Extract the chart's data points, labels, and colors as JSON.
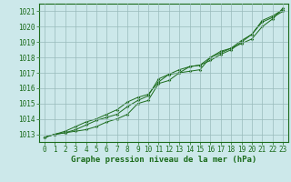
{
  "xlabel": "Graphe pression niveau de la mer (hPa)",
  "bg_color": "#cce8ea",
  "plot_bg_color": "#cce8ea",
  "line_color": "#1a6b1a",
  "grid_color": "#99bbbb",
  "text_color": "#1a6b1a",
  "xlim": [
    -0.5,
    23.5
  ],
  "ylim": [
    1012.5,
    1021.5
  ],
  "yticks": [
    1013,
    1014,
    1015,
    1016,
    1017,
    1018,
    1019,
    1020,
    1021
  ],
  "xticks": [
    0,
    1,
    2,
    3,
    4,
    5,
    6,
    7,
    8,
    9,
    10,
    11,
    12,
    13,
    14,
    15,
    16,
    17,
    18,
    19,
    20,
    21,
    22,
    23
  ],
  "line1": [
    1012.8,
    1013.0,
    1013.1,
    1013.2,
    1013.3,
    1013.5,
    1013.8,
    1014.0,
    1014.3,
    1015.0,
    1015.2,
    1016.3,
    1016.5,
    1017.0,
    1017.4,
    1017.5,
    1017.8,
    1018.2,
    1018.5,
    1019.0,
    1019.5,
    1020.3,
    1020.6,
    1021.0
  ],
  "line2": [
    1012.8,
    1013.0,
    1013.1,
    1013.3,
    1013.6,
    1013.9,
    1014.1,
    1014.3,
    1014.8,
    1015.2,
    1015.5,
    1016.6,
    1016.9,
    1017.2,
    1017.4,
    1017.5,
    1018.0,
    1018.3,
    1018.6,
    1019.1,
    1019.5,
    1020.4,
    1020.7,
    1021.1
  ],
  "line3": [
    1012.8,
    1013.0,
    1013.2,
    1013.5,
    1013.8,
    1014.0,
    1014.3,
    1014.6,
    1015.1,
    1015.4,
    1015.6,
    1016.4,
    1016.9,
    1017.0,
    1017.1,
    1017.2,
    1018.0,
    1018.4,
    1018.6,
    1018.9,
    1019.2,
    1020.0,
    1020.5,
    1021.2
  ],
  "figsize": [
    3.2,
    2.0
  ],
  "dpi": 100,
  "tick_fontsize": 5.5,
  "xlabel_fontsize": 6.5,
  "marker_size": 1.8,
  "linewidth": 0.7
}
